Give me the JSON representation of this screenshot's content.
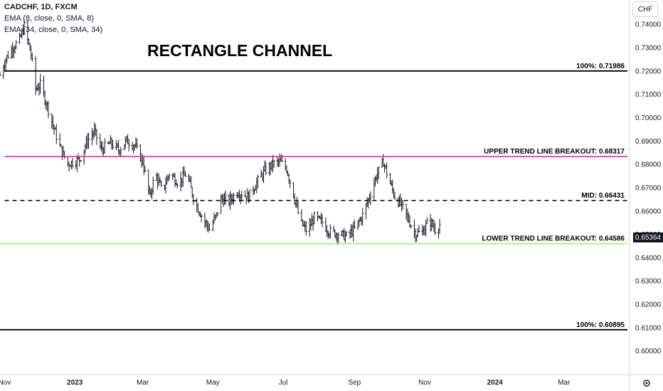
{
  "header": {
    "symbol_line": "CADCHF, 1D, FXCM",
    "ema_fast": "EMA (8, close, 0, SMA, 8)",
    "ema_slow": "EMA (34, close, 0, SMA, 34)"
  },
  "currency_button": "CHF",
  "current_price": "0.65364",
  "colors": {
    "candle": "#131722",
    "resistance": "#000000",
    "upper_trend": "#e0399c",
    "lower_trend": "#b8e986",
    "mid": "#000000",
    "axis_text": "#131722"
  },
  "chart_data": {
    "type": "ohlc",
    "title": "RECTANGLE CHANNEL",
    "ylim": [
      0.59,
      0.745
    ],
    "y_ticks": [
      "0.74000",
      "0.73000",
      "0.72000",
      "0.71000",
      "0.70000",
      "0.69000",
      "0.68000",
      "0.67000",
      "0.66000",
      "0.65000",
      "0.64000",
      "0.63000",
      "0.62000",
      "0.61000",
      "0.60000"
    ],
    "y_tick_values": [
      0.74,
      0.73,
      0.72,
      0.71,
      0.7,
      0.69,
      0.68,
      0.67,
      0.66,
      0.65,
      0.64,
      0.63,
      0.62,
      0.61,
      0.6
    ],
    "x_range": [
      "2022-10-28",
      "2024-03-20"
    ],
    "x_ticks": [
      {
        "label": "Nov",
        "date": "2022-11-01"
      },
      {
        "label": "2023",
        "date": "2023-01-01",
        "bold": true
      },
      {
        "label": "Mar",
        "date": "2023-03-01"
      },
      {
        "label": "May",
        "date": "2023-05-01"
      },
      {
        "label": "Jul",
        "date": "2023-07-01"
      },
      {
        "label": "Sep",
        "date": "2023-09-01"
      },
      {
        "label": "Nov",
        "date": "2023-11-01"
      },
      {
        "label": "2024",
        "date": "2024-01-01",
        "bold": true
      },
      {
        "label": "Mar",
        "date": "2024-03-01"
      }
    ],
    "levels": [
      {
        "label": "100%: 0.71986",
        "value": 0.71986,
        "style": "solid",
        "color_key": "resistance",
        "start": "2022-11-01"
      },
      {
        "label": "UPPER TREND LINE BREAKOUT: 0.68317",
        "value": 0.68317,
        "style": "solid",
        "color_key": "upper_trend",
        "start": "2022-11-01"
      },
      {
        "label": "MID: 0.66431",
        "value": 0.66431,
        "style": "dashed",
        "color_key": "mid",
        "start": "2022-11-01"
      },
      {
        "label": "LOWER TREND LINE BREAKOUT: 0.64586",
        "value": 0.64586,
        "style": "solid",
        "color_key": "lower_trend",
        "start": "2022-10-28"
      },
      {
        "label": "100%: 0.60895",
        "value": 0.60895,
        "style": "solid",
        "color_key": "resistance",
        "start": "2022-10-28"
      }
    ],
    "close_path": [
      {
        "date": "2022-10-28",
        "close": 0.718
      },
      {
        "date": "2022-11-02",
        "close": 0.725
      },
      {
        "date": "2022-11-08",
        "close": 0.73
      },
      {
        "date": "2022-11-14",
        "close": 0.733
      },
      {
        "date": "2022-11-18",
        "close": 0.739
      },
      {
        "date": "2022-11-24",
        "close": 0.727
      },
      {
        "date": "2022-11-28",
        "close": 0.712
      },
      {
        "date": "2022-12-02",
        "close": 0.714
      },
      {
        "date": "2022-12-08",
        "close": 0.705
      },
      {
        "date": "2022-12-14",
        "close": 0.695
      },
      {
        "date": "2022-12-20",
        "close": 0.686
      },
      {
        "date": "2022-12-26",
        "close": 0.68
      },
      {
        "date": "2023-01-05",
        "close": 0.682
      },
      {
        "date": "2023-01-12",
        "close": 0.69
      },
      {
        "date": "2023-01-18",
        "close": 0.694
      },
      {
        "date": "2023-01-24",
        "close": 0.686
      },
      {
        "date": "2023-02-01",
        "close": 0.689
      },
      {
        "date": "2023-02-08",
        "close": 0.686
      },
      {
        "date": "2023-02-15",
        "close": 0.69
      },
      {
        "date": "2023-02-22",
        "close": 0.688
      },
      {
        "date": "2023-03-01",
        "close": 0.681
      },
      {
        "date": "2023-03-07",
        "close": 0.666
      },
      {
        "date": "2023-03-12",
        "close": 0.676
      },
      {
        "date": "2023-03-18",
        "close": 0.668
      },
      {
        "date": "2023-03-24",
        "close": 0.676
      },
      {
        "date": "2023-04-01",
        "close": 0.672
      },
      {
        "date": "2023-04-08",
        "close": 0.676
      },
      {
        "date": "2023-04-15",
        "close": 0.664
      },
      {
        "date": "2023-04-22",
        "close": 0.657
      },
      {
        "date": "2023-04-28",
        "close": 0.652
      },
      {
        "date": "2023-05-04",
        "close": 0.658
      },
      {
        "date": "2023-05-08",
        "close": 0.665
      },
      {
        "date": "2023-05-15",
        "close": 0.664
      },
      {
        "date": "2023-05-22",
        "close": 0.668
      },
      {
        "date": "2023-06-01",
        "close": 0.666
      },
      {
        "date": "2023-06-08",
        "close": 0.672
      },
      {
        "date": "2023-06-15",
        "close": 0.677
      },
      {
        "date": "2023-06-22",
        "close": 0.68
      },
      {
        "date": "2023-06-28",
        "close": 0.681
      },
      {
        "date": "2023-07-04",
        "close": 0.678
      },
      {
        "date": "2023-07-10",
        "close": 0.667
      },
      {
        "date": "2023-07-16",
        "close": 0.655
      },
      {
        "date": "2023-07-22",
        "close": 0.651
      },
      {
        "date": "2023-07-28",
        "close": 0.657
      },
      {
        "date": "2023-08-04",
        "close": 0.655
      },
      {
        "date": "2023-08-10",
        "close": 0.651
      },
      {
        "date": "2023-08-18",
        "close": 0.65
      },
      {
        "date": "2023-08-25",
        "close": 0.649
      },
      {
        "date": "2023-09-01",
        "close": 0.652
      },
      {
        "date": "2023-09-08",
        "close": 0.658
      },
      {
        "date": "2023-09-14",
        "close": 0.666
      },
      {
        "date": "2023-09-20",
        "close": 0.675
      },
      {
        "date": "2023-09-26",
        "close": 0.681
      },
      {
        "date": "2023-10-01",
        "close": 0.673
      },
      {
        "date": "2023-10-06",
        "close": 0.666
      },
      {
        "date": "2023-10-12",
        "close": 0.662
      },
      {
        "date": "2023-10-18",
        "close": 0.656
      },
      {
        "date": "2023-10-24",
        "close": 0.65
      },
      {
        "date": "2023-10-30",
        "close": 0.651
      },
      {
        "date": "2023-11-05",
        "close": 0.656
      },
      {
        "date": "2023-11-10",
        "close": 0.652
      },
      {
        "date": "2023-11-14",
        "close": 0.654
      }
    ],
    "grid": false,
    "legend": "none"
  }
}
